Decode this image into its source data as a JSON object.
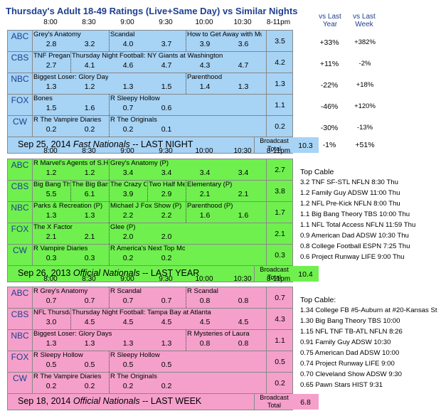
{
  "title": "Thursday's Adult 18-49 Ratings (Live+Same Day) vs Similar Nights",
  "time_headers": [
    "8:00",
    "8:30",
    "9:00",
    "9:30",
    "10:00",
    "10:30",
    "8-11pm"
  ],
  "compare_headers": {
    "year": "vs Last Year",
    "week": "vs Last Week"
  },
  "compare_headers_lines": {
    "year": [
      "vs Last",
      "Year"
    ],
    "week": [
      "vs Last",
      "Week"
    ]
  },
  "blocks": [
    {
      "color": "#a7d3f5",
      "footer_label": "Sep 25, 2014",
      "footer_label_italic": "Fast Nationals",
      "footer_suffix": " -- LAST NIGHT",
      "broadcast_label": [
        "Broadcast",
        "Total"
      ],
      "broadcast_total": "10.3",
      "broadcast_vs_year": "-1%",
      "broadcast_vs_week": "+51%",
      "rows": [
        {
          "net": "ABC",
          "programs": [
            {
              "name": "Grey's Anatomy",
              "col": 0,
              "span": 2
            },
            {
              "name": "Scandal",
              "col": 2,
              "span": 2
            },
            {
              "name": "How to Get Away with Mur",
              "col": 4,
              "span": 2
            }
          ],
          "ratings": [
            "2.8",
            "3.2",
            "4.0",
            "3.7",
            "3.9",
            "3.6"
          ],
          "total": "3.5",
          "vs_year": "+33%",
          "vs_week": "+382%"
        },
        {
          "net": "CBS",
          "programs": [
            {
              "name": "TNF Pregame",
              "col": 0,
              "span": 1
            },
            {
              "name": "Thursday Night Football: NY Giants at Washington",
              "col": 1,
              "span": 5
            }
          ],
          "ratings": [
            "2.7",
            "4.1",
            "4.6",
            "4.7",
            "4.3",
            "4.7"
          ],
          "total": "4.2",
          "vs_year": "+11%",
          "vs_week": "-2%"
        },
        {
          "net": "NBC",
          "programs": [
            {
              "name": "Biggest Loser: Glory Days",
              "col": 0,
              "span": 2
            },
            {
              "name": "Parenthood",
              "col": 4,
              "span": 2
            }
          ],
          "ratings": [
            "1.3",
            "1.2",
            "1.3",
            "1.5",
            "1.4",
            "1.3"
          ],
          "total": "1.3",
          "vs_year": "-22%",
          "vs_week": "+18%"
        },
        {
          "net": "FOX",
          "programs": [
            {
              "name": "Bones",
              "col": 0,
              "span": 2
            },
            {
              "name": "R Sleepy Hollow",
              "col": 2,
              "span": 2
            }
          ],
          "ratings": [
            "1.5",
            "1.6",
            "0.7",
            "0.6",
            "",
            ""
          ],
          "total": "1.1",
          "vs_year": "-46%",
          "vs_week": "+120%"
        },
        {
          "net": "CW",
          "programs": [
            {
              "name": "R The Vampire Diaries",
              "col": 0,
              "span": 2
            },
            {
              "name": "R The Originals",
              "col": 2,
              "span": 2
            }
          ],
          "ratings": [
            "0.2",
            "0.2",
            "0.2",
            "0.1",
            "",
            ""
          ],
          "total": "0.2",
          "vs_year": "-30%",
          "vs_week": "-13%"
        }
      ]
    },
    {
      "color": "#6ff04f",
      "footer_label": "Sep 26, 2013",
      "footer_label_italic": "Official Nationals",
      "footer_suffix": " -- LAST YEAR",
      "broadcast_label": [
        "Broadcast",
        "Total"
      ],
      "broadcast_total": "10.4",
      "rows": [
        {
          "net": "ABC",
          "programs": [
            {
              "name": "R Marvel's Agents of S.H.I.E",
              "col": 0,
              "span": 2
            },
            {
              "name": "Grey's Anatomy (P)",
              "col": 2,
              "span": 4
            }
          ],
          "ratings": [
            "1.2",
            "1.2",
            "3.4",
            "3.4",
            "3.4",
            "3.4"
          ],
          "total": "2.7"
        },
        {
          "net": "CBS",
          "programs": [
            {
              "name": "Big Bang Theory",
              "col": 0,
              "span": 1
            },
            {
              "name": "The Big Bang Theory",
              "col": 1,
              "span": 1
            },
            {
              "name": "The Crazy Ones (P)",
              "col": 2,
              "span": 1
            },
            {
              "name": "Two Half Men",
              "col": 3,
              "span": 1
            },
            {
              "name": "Elementary (P)",
              "col": 4,
              "span": 2
            }
          ],
          "ratings": [
            "5.5",
            "6.1",
            "3.9",
            "2.9",
            "2.1",
            "2.1"
          ],
          "total": "3.8"
        },
        {
          "net": "NBC",
          "programs": [
            {
              "name": "Parks & Recreation (P)",
              "col": 0,
              "span": 2
            },
            {
              "name": "Michael J Fox Show (P)",
              "col": 2,
              "span": 2
            },
            {
              "name": "Parenthood (P)",
              "col": 4,
              "span": 2
            }
          ],
          "ratings": [
            "1.3",
            "1.3",
            "2.2",
            "2.2",
            "1.6",
            "1.6"
          ],
          "total": "1.7"
        },
        {
          "net": "FOX",
          "programs": [
            {
              "name": "The X Factor",
              "col": 0,
              "span": 2
            },
            {
              "name": "Glee (P)",
              "col": 2,
              "span": 2
            }
          ],
          "ratings": [
            "2.1",
            "2.1",
            "2.0",
            "2.0",
            "",
            ""
          ],
          "total": "2.1"
        },
        {
          "net": "CW",
          "programs": [
            {
              "name": "R Vampire Diaries",
              "col": 0,
              "span": 2
            },
            {
              "name": "R America's Next Top Mode",
              "col": 2,
              "span": 2
            }
          ],
          "ratings": [
            "0.3",
            "0.3",
            "0.2",
            "0.2",
            "",
            ""
          ],
          "total": "0.3"
        }
      ],
      "side_title": "Top Cable",
      "side_items": [
        "3.2 TNF SF-STL NFLN 8:30 Thu",
        "1.2 Family Guy ADSW 11:00 Thu",
        "1.2 NFL Pre-Kick NFLN 8:00 Thu",
        "1.1 Big Bang Theory TBS 10:00 Thu",
        "1.1 NFL Total Access NFLN 11:59 Thu",
        "0.9 American Dad ADSW 10:30 Thu",
        "0.8 College Football ESPN 7:25 Thu",
        "0.6 Project Runway LIFE 9:00 Thu"
      ]
    },
    {
      "color": "#f5a0cb",
      "footer_label": "Sep 18, 2014",
      "footer_label_italic": "Official Nationals",
      "footer_suffix": " -- LAST WEEK",
      "broadcast_label": [
        "Broadcast",
        "Total"
      ],
      "broadcast_total": "6.8",
      "rows": [
        {
          "net": "ABC",
          "programs": [
            {
              "name": "R Grey's Anatomy",
              "col": 0,
              "span": 2
            },
            {
              "name": "R Scandal",
              "col": 2,
              "span": 2
            },
            {
              "name": "R Scandal",
              "col": 4,
              "span": 2
            }
          ],
          "ratings": [
            "0.7",
            "0.7",
            "0.7",
            "0.7",
            "0.8",
            "0.8"
          ],
          "total": "0.7"
        },
        {
          "net": "CBS",
          "programs": [
            {
              "name": "NFL Thursday",
              "col": 0,
              "span": 1
            },
            {
              "name": "Thursday Night Football: Tampa Bay at Atlanta",
              "col": 1,
              "span": 5
            }
          ],
          "ratings": [
            "3.0",
            "4.5",
            "4.5",
            "4.5",
            "4.5",
            "4.5"
          ],
          "total": "4.3"
        },
        {
          "net": "NBC",
          "programs": [
            {
              "name": "Biggest Loser: Glory Days",
              "col": 0,
              "span": 4
            },
            {
              "name": "R Mysteries of Laura",
              "col": 4,
              "span": 2
            }
          ],
          "ratings": [
            "1.3",
            "1.3",
            "1.3",
            "1.3",
            "0.8",
            "0.8"
          ],
          "total": "1.1"
        },
        {
          "net": "FOX",
          "programs": [
            {
              "name": "R Sleepy Hollow",
              "col": 0,
              "span": 2
            },
            {
              "name": "R Sleepy Hollow",
              "col": 2,
              "span": 2
            }
          ],
          "ratings": [
            "0.5",
            "0.5",
            "0.5",
            "0.5",
            "",
            ""
          ],
          "total": "0.5"
        },
        {
          "net": "CW",
          "programs": [
            {
              "name": "R The Vampire Diaries",
              "col": 0,
              "span": 2
            },
            {
              "name": "R The Originals",
              "col": 2,
              "span": 2
            }
          ],
          "ratings": [
            "0.2",
            "0.2",
            "0.2",
            "0.2",
            "",
            ""
          ],
          "total": "0.2"
        }
      ],
      "side_title": "Top Cable:",
      "side_items": [
        "1.34 College FB #5-Auburn at #20-Kansas St",
        "1.30 Big Bang Theory TBS 10:00",
        "1.15 NFL TNF TB-ATL NFLN 8:26",
        "0.91 Family Guy ADSW 10:30",
        "0.75 American Dad ADSW 10:00",
        "0.74 Project Runway LIFE 9:00",
        "0.70 Cleveland Show ADSW 9:30",
        "0.65 Pawn Stars HIST 9:31"
      ]
    }
  ]
}
